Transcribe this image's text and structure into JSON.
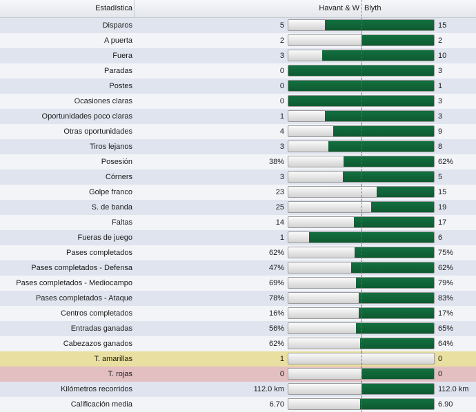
{
  "header": {
    "stat_label": "Estadística",
    "home_team": "Havant & W",
    "away_team": "Blyth"
  },
  "colors": {
    "bar_fill": "#0e5a30",
    "row_alt": "#dfe4ee",
    "row_yellow": "#e8dfa0",
    "row_red": "#e3bfc2"
  },
  "rows": [
    {
      "label": "Disparos",
      "home": "5",
      "away": "15",
      "away_share": 0.75
    },
    {
      "label": "A puerta",
      "home": "2",
      "away": "2",
      "away_share": 0.5
    },
    {
      "label": "Fuera",
      "home": "3",
      "away": "10",
      "away_share": 0.769
    },
    {
      "label": "Paradas",
      "home": "0",
      "away": "3",
      "away_share": 1.0
    },
    {
      "label": "Postes",
      "home": "0",
      "away": "1",
      "away_share": 1.0
    },
    {
      "label": "Ocasiones claras",
      "home": "0",
      "away": "3",
      "away_share": 1.0
    },
    {
      "label": "Oportunidades poco claras",
      "home": "1",
      "away": "3",
      "away_share": 0.75
    },
    {
      "label": "Otras oportunidades",
      "home": "4",
      "away": "9",
      "away_share": 0.692
    },
    {
      "label": "Tiros lejanos",
      "home": "3",
      "away": "8",
      "away_share": 0.727
    },
    {
      "label": "Posesión",
      "home": "38%",
      "away": "62%",
      "away_share": 0.62
    },
    {
      "label": "Córners",
      "home": "3",
      "away": "5",
      "away_share": 0.625
    },
    {
      "label": "Golpe franco",
      "home": "23",
      "away": "15",
      "away_share": 0.395
    },
    {
      "label": "S. de banda",
      "home": "25",
      "away": "19",
      "away_share": 0.432
    },
    {
      "label": "Faltas",
      "home": "14",
      "away": "17",
      "away_share": 0.548
    },
    {
      "label": "Fueras de juego",
      "home": "1",
      "away": "6",
      "away_share": 0.857
    },
    {
      "label": "Pases completados",
      "home": "62%",
      "away": "75%",
      "away_share": 0.547
    },
    {
      "label": "Pases completados - Defensa",
      "home": "47%",
      "away": "62%",
      "away_share": 0.569
    },
    {
      "label": "Pases completados - Mediocampo",
      "home": "69%",
      "away": "79%",
      "away_share": 0.534
    },
    {
      "label": "Pases completados - Ataque",
      "home": "78%",
      "away": "83%",
      "away_share": 0.516
    },
    {
      "label": "Centros completados",
      "home": "16%",
      "away": "17%",
      "away_share": 0.515
    },
    {
      "label": "Entradas ganadas",
      "home": "56%",
      "away": "65%",
      "away_share": 0.537
    },
    {
      "label": "Cabezazos ganados",
      "home": "62%",
      "away": "64%",
      "away_share": 0.508
    },
    {
      "label": "T. amarillas",
      "home": "1",
      "away": "0",
      "away_share": 0.0,
      "highlight": "yellow"
    },
    {
      "label": "T. rojas",
      "home": "0",
      "away": "0",
      "away_share": 0.5,
      "highlight": "red"
    },
    {
      "label": "Kilómetros recorridos",
      "home": "112.0 km",
      "away": "112.0 km",
      "away_share": 0.5
    },
    {
      "label": "Calificación media",
      "home": "6.70",
      "away": "6.90",
      "away_share": 0.507
    }
  ]
}
